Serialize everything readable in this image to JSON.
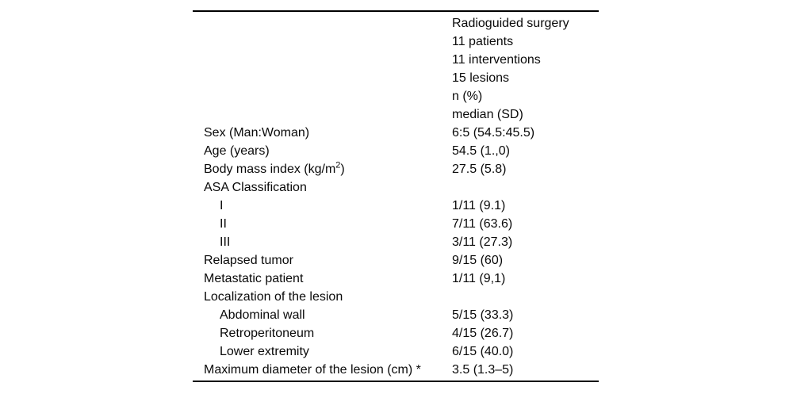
{
  "table": {
    "header_lines": [
      "Radioguided surgery",
      "11 patients",
      "11 interventions",
      "15 lesions",
      "n (%)",
      "median (SD)"
    ],
    "rows": [
      {
        "label": "Sex (Man:Woman)",
        "value": "6:5 (54.5:45.5)"
      },
      {
        "label": "Age (years)",
        "value": "54.5 (1.,0)"
      },
      {
        "label": "Body mass index (kg/m",
        "label_sup": "2",
        "label_suffix": ")",
        "value": "27.5 (5.8)"
      },
      {
        "label": "ASA Classification",
        "value": ""
      },
      {
        "label": "I",
        "value": "1/11 (9.1)"
      },
      {
        "label": "II",
        "value": "7/11 (63.6)"
      },
      {
        "label": "III",
        "value": "3/11 (27.3)"
      },
      {
        "label": "Relapsed tumor",
        "value": "9/15 (60)"
      },
      {
        "label": "Metastatic patient",
        "value": "1/11 (9,1)"
      },
      {
        "label": "Localization of the lesion",
        "value": ""
      },
      {
        "label": "Abdominal wall",
        "value": "5/15 (33.3)"
      },
      {
        "label": "Retroperitoneum",
        "value": "4/15 (26.7)"
      },
      {
        "label": "Lower extremity",
        "value": "6/15 (40.0)"
      },
      {
        "label": "Maximum diameter of the lesion (cm) *",
        "value": "3.5 (1.3–5)"
      }
    ]
  }
}
